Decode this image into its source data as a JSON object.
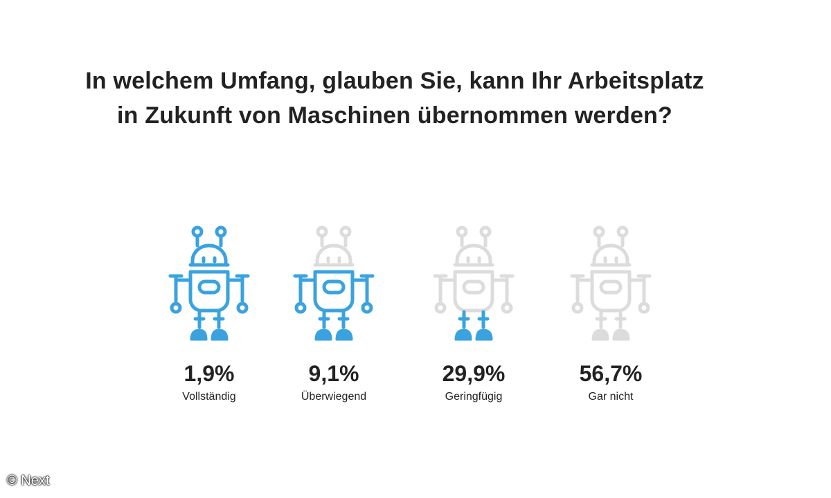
{
  "title": {
    "line1": "In welchem Umfang, glauben Sie, kann Ihr Arbeitsplatz",
    "line2": "in Zukunft von Maschinen übernommen werden?"
  },
  "credit": "© Next",
  "colors": {
    "highlight": "#3aa3df",
    "inactive": "#dcdcdc",
    "text": "#222222"
  },
  "chart_data": {
    "type": "pictogram",
    "categories": [
      "Vollständig",
      "Überwiegend",
      "Geringfügig",
      "Gar nicht"
    ],
    "values": [
      1.9,
      9.1,
      29.9,
      56.7
    ],
    "value_labels": [
      "1,9%",
      "9,1%",
      "29,9%",
      "56,7%"
    ],
    "unit": "%",
    "icon": "robot-icon",
    "highlighted_parts": [
      [
        "antennas",
        "head",
        "torso",
        "arms",
        "legs"
      ],
      [
        "torso",
        "arms",
        "legs"
      ],
      [
        "legs"
      ],
      []
    ]
  }
}
